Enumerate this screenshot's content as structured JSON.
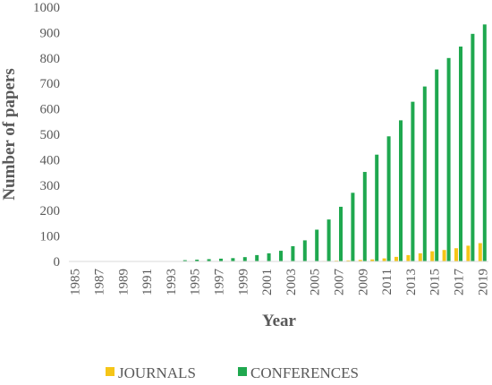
{
  "chart_data": {
    "type": "bar",
    "title": "",
    "xlabel": "Year",
    "ylabel": "Number of papers",
    "ylim": [
      0,
      1000
    ],
    "yticks": [
      0,
      100,
      200,
      300,
      400,
      500,
      600,
      700,
      800,
      900,
      1000
    ],
    "grid": false,
    "legend_position": "bottom",
    "categories": [
      "1985",
      "1986",
      "1987",
      "1988",
      "1989",
      "1990",
      "1991",
      "1992",
      "1993",
      "1994",
      "1995",
      "1996",
      "1997",
      "1998",
      "1999",
      "2000",
      "2001",
      "2002",
      "2003",
      "2004",
      "2005",
      "2006",
      "2007",
      "2008",
      "2009",
      "2010",
      "2011",
      "2012",
      "2013",
      "2014",
      "2015",
      "2016",
      "2017",
      "2018",
      "2019"
    ],
    "xtick_labels": [
      "1985",
      "1987",
      "1989",
      "1991",
      "1993",
      "1995",
      "1997",
      "1999",
      "2001",
      "2003",
      "2005",
      "2007",
      "2009",
      "2011",
      "2013",
      "2015",
      "2017",
      "2019"
    ],
    "series": [
      {
        "name": "JOURNALS",
        "color": "#f5c518",
        "values": [
          0,
          0,
          0,
          0,
          0,
          0,
          0,
          0,
          0,
          0,
          0,
          0,
          0,
          0,
          0,
          0,
          0,
          0,
          0,
          0,
          1,
          2,
          3,
          4,
          6,
          8,
          12,
          18,
          25,
          32,
          40,
          45,
          52,
          62,
          72
        ]
      },
      {
        "name": "CONFERENCES",
        "color": "#1fa84f",
        "values": [
          0,
          0,
          0,
          0,
          0,
          0,
          0,
          0,
          0,
          5,
          7,
          9,
          11,
          13,
          17,
          25,
          32,
          42,
          60,
          83,
          125,
          165,
          215,
          270,
          352,
          420,
          492,
          555,
          628,
          688,
          755,
          800,
          845,
          895,
          932
        ]
      }
    ]
  }
}
